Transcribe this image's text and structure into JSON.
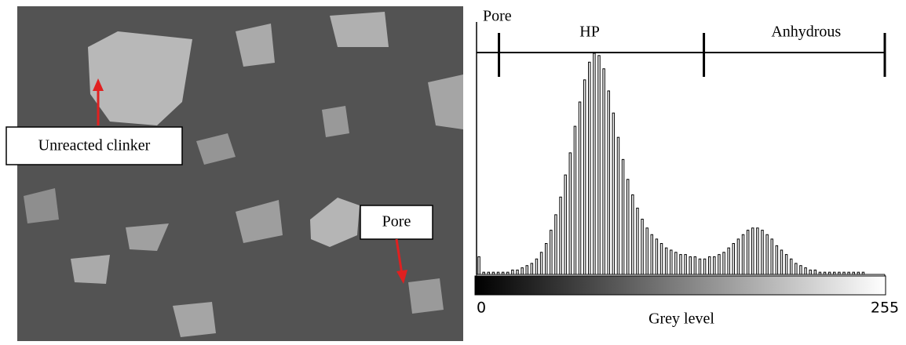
{
  "image": {
    "annotations": [
      "Unreacted clinker",
      "Pore"
    ]
  },
  "chart_data": {
    "type": "histogram",
    "xlabel": "Grey level",
    "xlim": [
      0,
      255
    ],
    "xticks": [
      0,
      255
    ],
    "ylim": [
      0,
      100
    ],
    "color": "#000000",
    "regions": [
      {
        "label": "Pore",
        "range": [
          0,
          14
        ]
      },
      {
        "label": "HP",
        "range": [
          14,
          142
        ]
      },
      {
        "label": "Anhydrous",
        "range": [
          142,
          255
        ]
      }
    ],
    "bins": [
      0,
      3,
      6,
      9,
      12,
      15,
      18,
      21,
      24,
      27,
      30,
      33,
      36,
      39,
      42,
      45,
      48,
      51,
      54,
      57,
      60,
      63,
      66,
      69,
      72,
      75,
      78,
      81,
      84,
      87,
      90,
      93,
      96,
      99,
      102,
      105,
      108,
      111,
      114,
      117,
      120,
      123,
      126,
      129,
      132,
      135,
      138,
      141,
      144,
      147,
      150,
      153,
      156,
      159,
      162,
      165,
      168,
      171,
      174,
      177,
      180,
      183,
      186,
      189,
      192,
      195,
      198,
      201,
      204,
      207,
      210,
      213,
      216,
      219,
      222,
      225,
      228,
      231,
      234,
      237,
      240,
      243,
      246,
      249,
      252,
      255
    ],
    "values": [
      8,
      1,
      1,
      1,
      1,
      1,
      1,
      2,
      2,
      3,
      4,
      5,
      7,
      10,
      14,
      20,
      27,
      35,
      45,
      55,
      67,
      78,
      88,
      96,
      100,
      99,
      93,
      83,
      73,
      62,
      52,
      43,
      36,
      30,
      25,
      21,
      18,
      16,
      14,
      12,
      11,
      10,
      9,
      9,
      8,
      8,
      7,
      7,
      8,
      8,
      9,
      10,
      12,
      14,
      16,
      18,
      20,
      21,
      21,
      20,
      18,
      16,
      13,
      11,
      9,
      7,
      5,
      4,
      3,
      2,
      2,
      1,
      1,
      1,
      1,
      1,
      1,
      1,
      1,
      1,
      1,
      0,
      0,
      0,
      0
    ]
  }
}
